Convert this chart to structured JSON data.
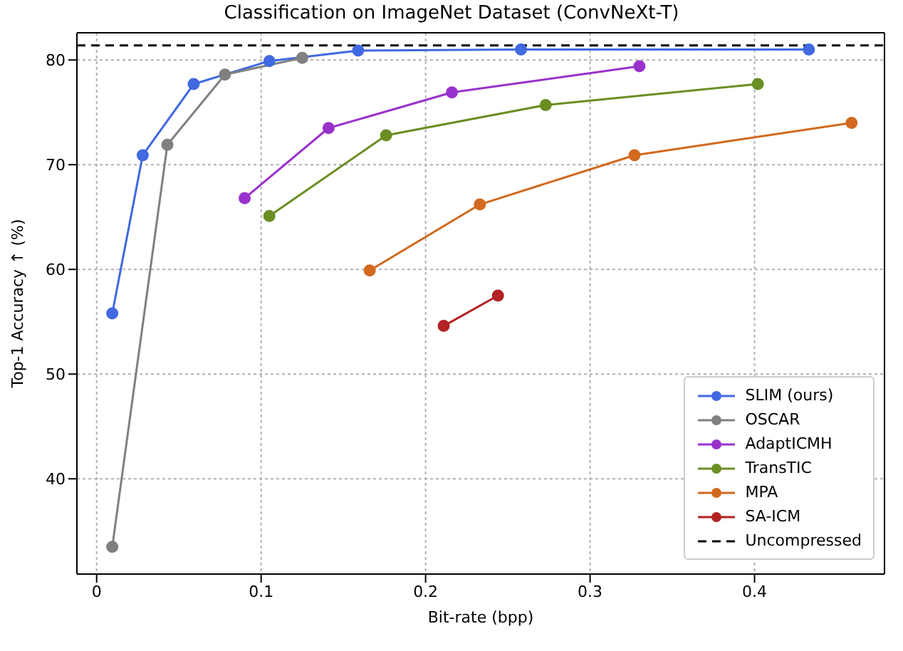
{
  "chart_data": {
    "type": "line",
    "title": "Classification on ImageNet Dataset (ConvNeXt-T)",
    "xlabel": "Bit-rate (bpp)",
    "ylabel": "Top-1 Accuracy ↑ (%)",
    "xlim": [
      -0.012,
      0.479
    ],
    "ylim": [
      30.9,
      82.6
    ],
    "xticks": [
      0,
      0.1,
      0.2,
      0.3,
      0.4
    ],
    "yticks": [
      40,
      50,
      60,
      70,
      80
    ],
    "grid": true,
    "legend": "bottom right",
    "marker": "circle",
    "line_style": "solid",
    "series": [
      {
        "name": "SLIM (ours)",
        "color": "#4169e1",
        "x": [
          0.0095,
          0.028,
          0.059,
          0.105,
          0.159,
          0.258,
          0.433
        ],
        "values": [
          55.8,
          70.9,
          77.7,
          79.9,
          80.9,
          81.0,
          81.0
        ]
      },
      {
        "name": "OSCAR",
        "color": "#808080",
        "x": [
          0.0095,
          0.043,
          0.078,
          0.125
        ],
        "values": [
          33.5,
          71.9,
          78.6,
          80.2
        ]
      },
      {
        "name": "AdaptICMH",
        "color": "#9932cc",
        "x": [
          0.09,
          0.141,
          0.216,
          0.33
        ],
        "values": [
          66.8,
          73.5,
          76.9,
          79.4
        ]
      },
      {
        "name": "TransTIC",
        "color": "#6b8e23",
        "x": [
          0.105,
          0.176,
          0.273,
          0.402
        ],
        "values": [
          65.1,
          72.8,
          75.7,
          77.7
        ]
      },
      {
        "name": "MPA",
        "color": "#d2691e",
        "x": [
          0.166,
          0.233,
          0.327,
          0.459
        ],
        "values": [
          59.9,
          66.2,
          70.9,
          74.0
        ]
      },
      {
        "name": "SA-ICM",
        "color": "#b22222",
        "x": [
          0.211,
          0.244
        ],
        "values": [
          54.6,
          57.5
        ]
      }
    ],
    "ref_lines": [
      {
        "axis": "y",
        "value": 81.4,
        "label": "Uncompressed",
        "color": "#000000",
        "line_style": "dashed"
      }
    ]
  }
}
